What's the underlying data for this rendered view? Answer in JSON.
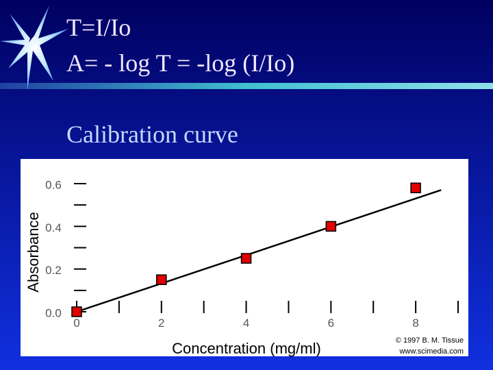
{
  "slide": {
    "title_lines": [
      "T=I/Io",
      "A= - log T = -log (I/Io)"
    ],
    "subtitle": "Calibration curve"
  },
  "chart_data": {
    "type": "scatter",
    "x_label": "Concentration (mg/ml)",
    "y_label": "Absorbance",
    "x": [
      0,
      2,
      4,
      6,
      8
    ],
    "series": [
      {
        "color": "#e00000",
        "values": [
          0,
          0.15,
          0.25,
          0.4,
          0.58
        ]
      }
    ],
    "fit_line": {
      "x": [
        0,
        8.6
      ],
      "y": [
        0,
        0.57
      ]
    },
    "xlim": [
      0,
      9
    ],
    "ylim": [
      0,
      0.6
    ],
    "xticks": [
      0,
      2,
      4,
      6,
      8
    ],
    "minor_xticks": [
      1,
      3,
      5,
      7,
      9
    ],
    "yticks": [
      {
        "value": 0,
        "label": "0.0"
      },
      0.2,
      0.4,
      0.6
    ],
    "minor_yticks": [
      0.1,
      0.3,
      0.5
    ],
    "credits": [
      "© 1997 B. M. Tissue",
      "www.scimedia.com"
    ]
  }
}
